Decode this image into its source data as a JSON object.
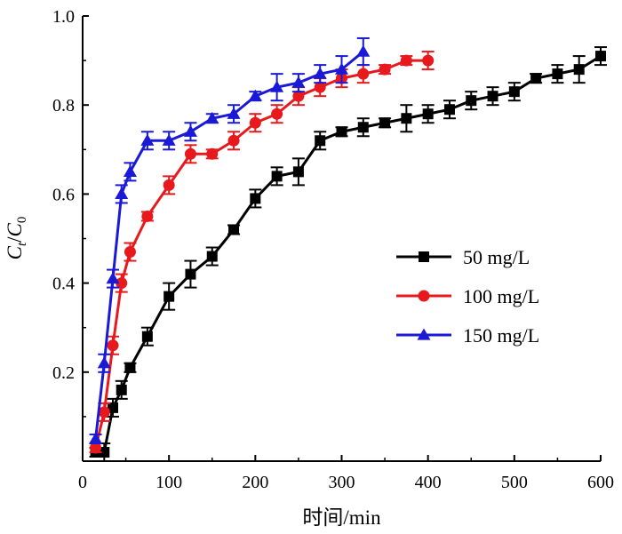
{
  "chart_data": {
    "type": "line",
    "title": "",
    "xlabel": "时间/min",
    "ylabel": "C_t/C_0",
    "ylabel_main_1": "C",
    "ylabel_sub_1": "t",
    "ylabel_slash": "/",
    "ylabel_main_2": "C",
    "ylabel_sub_2": "0",
    "xlim": [
      0,
      600
    ],
    "ylim": [
      0.0,
      1.0
    ],
    "xticks": [
      0,
      100,
      200,
      300,
      400,
      500,
      600
    ],
    "yticks": [
      0.2,
      0.4,
      0.6,
      0.8,
      1.0
    ],
    "xtick_labels": [
      "0",
      "100",
      "200",
      "300",
      "400",
      "500",
      "600"
    ],
    "ytick_labels": [
      "0.2",
      "0.4",
      "0.6",
      "0.8",
      "1.0"
    ],
    "grid": false,
    "legend_position": "right-center",
    "series": [
      {
        "name": "50 mg/L",
        "color": "#000000",
        "marker": "square",
        "x": [
          15,
          25,
          35,
          45,
          55,
          75,
          100,
          125,
          150,
          175,
          200,
          225,
          250,
          275,
          300,
          325,
          350,
          375,
          400,
          425,
          450,
          475,
          500,
          525,
          550,
          575,
          600
        ],
        "y": [
          0.02,
          0.02,
          0.12,
          0.16,
          0.21,
          0.28,
          0.37,
          0.42,
          0.46,
          0.52,
          0.59,
          0.64,
          0.65,
          0.72,
          0.74,
          0.75,
          0.76,
          0.77,
          0.78,
          0.79,
          0.81,
          0.82,
          0.83,
          0.86,
          0.87,
          0.88,
          0.91
        ],
        "err": [
          0.01,
          0.02,
          0.02,
          0.02,
          0.01,
          0.02,
          0.03,
          0.03,
          0.02,
          0.01,
          0.02,
          0.02,
          0.03,
          0.02,
          0.01,
          0.02,
          0.01,
          0.03,
          0.02,
          0.02,
          0.02,
          0.02,
          0.02,
          0.01,
          0.02,
          0.03,
          0.02
        ]
      },
      {
        "name": "100 mg/L",
        "color": "#e8191d",
        "marker": "circle",
        "x": [
          15,
          25,
          35,
          45,
          55,
          75,
          100,
          125,
          150,
          175,
          200,
          225,
          250,
          275,
          300,
          325,
          350,
          375,
          400
        ],
        "y": [
          0.03,
          0.11,
          0.26,
          0.4,
          0.47,
          0.55,
          0.62,
          0.69,
          0.69,
          0.72,
          0.76,
          0.78,
          0.82,
          0.84,
          0.86,
          0.87,
          0.88,
          0.9,
          0.9
        ],
        "err": [
          0.01,
          0.02,
          0.02,
          0.02,
          0.02,
          0.01,
          0.02,
          0.02,
          0.01,
          0.02,
          0.02,
          0.02,
          0.02,
          0.02,
          0.02,
          0.02,
          0.01,
          0.01,
          0.02
        ]
      },
      {
        "name": "150 mg/L",
        "color": "#1a1ad6",
        "marker": "triangle",
        "x": [
          15,
          25,
          35,
          45,
          55,
          75,
          100,
          125,
          150,
          175,
          200,
          225,
          250,
          275,
          300,
          325
        ],
        "y": [
          0.05,
          0.22,
          0.41,
          0.6,
          0.65,
          0.72,
          0.72,
          0.74,
          0.77,
          0.78,
          0.82,
          0.84,
          0.85,
          0.87,
          0.88,
          0.92
        ],
        "err": [
          0.01,
          0.02,
          0.02,
          0.02,
          0.02,
          0.02,
          0.02,
          0.02,
          0.01,
          0.02,
          0.01,
          0.03,
          0.02,
          0.02,
          0.03,
          0.03
        ]
      }
    ]
  }
}
